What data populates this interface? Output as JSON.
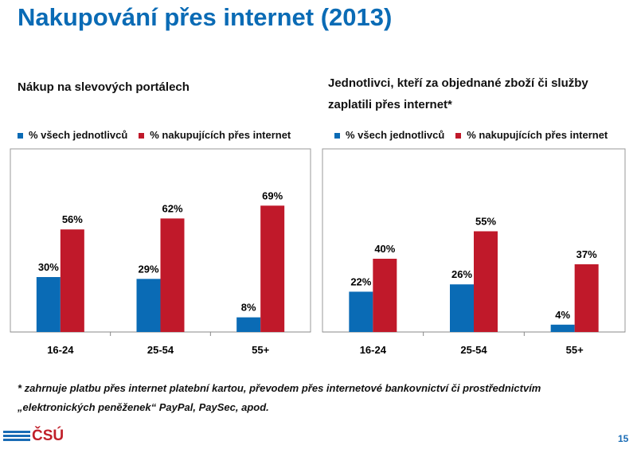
{
  "title": "Nakupování přes internet (2013)",
  "footnote_line1": "* zahrnuje platbu přes internet platební kartou, převodem přes internetové bankovnictví  či prostřednictvím",
  "footnote_line2": "„elektronických peněženek“ PayPal, PaySec, apod.",
  "logo_text": "ČSÚ",
  "page_number": "15",
  "colors": {
    "blue": "#0a6bb5",
    "red": "#c0192a",
    "title": "#0a6bb5"
  },
  "chart_data": [
    {
      "type": "bar",
      "title": "Nákup na slevových portálech",
      "categories": [
        "16-24",
        "25-54",
        "55+"
      ],
      "series": [
        {
          "name": "% všech jednotlivců",
          "values": [
            30,
            29,
            8
          ]
        },
        {
          "name": "% nakupujících přes internet",
          "values": [
            56,
            62,
            69
          ]
        }
      ],
      "data_labels": [
        [
          "30%",
          "29%",
          "8%"
        ],
        [
          "56%",
          "62%",
          "69%"
        ]
      ],
      "ylim": [
        0,
        100
      ],
      "legend": "top"
    },
    {
      "type": "bar",
      "title_line1": "Jednotlivci, kteří za objednané zboží či služby",
      "title_line2": "zaplatili přes internet*",
      "categories": [
        "16-24",
        "25-54",
        "55+"
      ],
      "series": [
        {
          "name": "% všech jednotlivců",
          "values": [
            22,
            26,
            4
          ]
        },
        {
          "name": "% nakupujících přes internet",
          "values": [
            40,
            55,
            37
          ]
        }
      ],
      "data_labels": [
        [
          "22%",
          "26%",
          "4%"
        ],
        [
          "40%",
          "55%",
          "37%"
        ]
      ],
      "ylim": [
        0,
        100
      ],
      "legend": "top"
    }
  ]
}
